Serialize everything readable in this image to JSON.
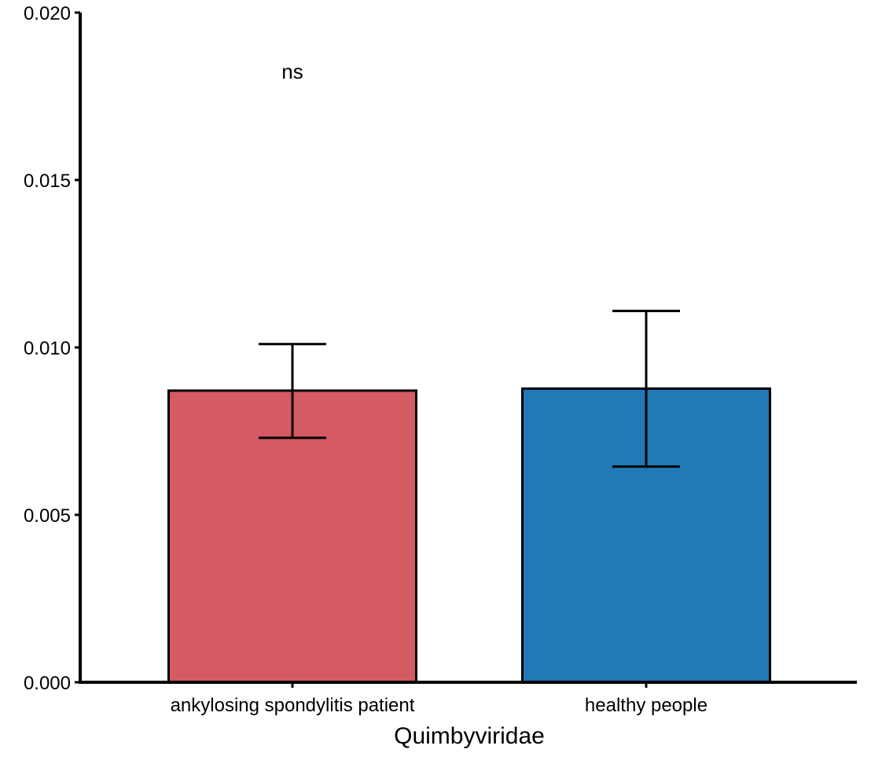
{
  "chart_data": {
    "type": "bar",
    "title": "",
    "xlabel": "Quimbyviridae",
    "ylabel": "",
    "categories": [
      "ankylosing spondylitis patient",
      "healthy people"
    ],
    "values": [
      0.00871,
      0.00877
    ],
    "error_low": [
      0.0073,
      0.00644
    ],
    "error_high": [
      0.0101,
      0.01109
    ],
    "colors": [
      "#D45B63",
      "#2179B5"
    ],
    "ylim": [
      0,
      0.02
    ],
    "yticks": [
      "0.000",
      "0.005",
      "0.010",
      "0.015",
      "0.020"
    ],
    "ytick_values": [
      0,
      0.005,
      0.01,
      0.015,
      0.02
    ],
    "annotation": "ns",
    "grid": false,
    "legend": "none"
  }
}
